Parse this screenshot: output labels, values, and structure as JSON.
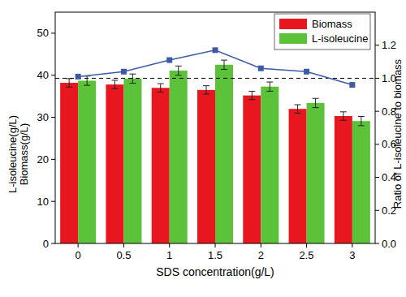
{
  "chart_data": {
    "type": "bar",
    "x_label": "SDS concentration(g/L)",
    "y_label": [
      "L-isoleucine(g/L)",
      "Biomass(g/L)"
    ],
    "y2_label": "Ratio of L-isoleucine to biomass",
    "categories": [
      "0",
      "0.5",
      "1",
      "1.5",
      "2",
      "2.5",
      "3"
    ],
    "series": [
      {
        "name": "Biomass",
        "color": "#e8161f",
        "values": [
          38.2,
          37.8,
          37.0,
          36.5,
          35.2,
          32.0,
          30.3
        ],
        "errors": [
          1.0,
          1.0,
          1.0,
          1.0,
          1.0,
          1.0,
          1.0
        ]
      },
      {
        "name": "L-isoleucine",
        "color": "#5cc23a",
        "values": [
          38.7,
          39.2,
          41.1,
          42.5,
          37.3,
          33.4,
          29.1
        ],
        "errors": [
          1.1,
          1.1,
          1.1,
          1.1,
          1.1,
          1.1,
          1.1
        ]
      },
      {
        "type": "line",
        "axis": "y2",
        "color": "#3d5aa8",
        "marker": "square",
        "line_style": "solid",
        "values": [
          1.01,
          1.04,
          1.11,
          1.17,
          1.06,
          1.04,
          0.96
        ]
      }
    ],
    "ref_line": {
      "value": 1.0,
      "axis": "y2",
      "line_style": "dashed"
    },
    "ylim": [
      0,
      55
    ],
    "yticks": [
      0,
      10,
      20,
      30,
      40,
      50
    ],
    "y2lim": [
      0,
      1.4
    ],
    "y2ticks": [
      {
        "value": 0,
        "label": "0.0"
      },
      {
        "value": 0.2,
        "label": "0.2"
      },
      {
        "value": 0.4,
        "label": "0.4"
      },
      {
        "value": 0.6,
        "label": "0.6"
      },
      {
        "value": 0.8,
        "label": "0.8"
      },
      {
        "value": 1.0,
        "label": "1.0"
      },
      {
        "value": 1.2,
        "label": "1.2"
      }
    ],
    "legend": "upper right",
    "grid": false
  }
}
